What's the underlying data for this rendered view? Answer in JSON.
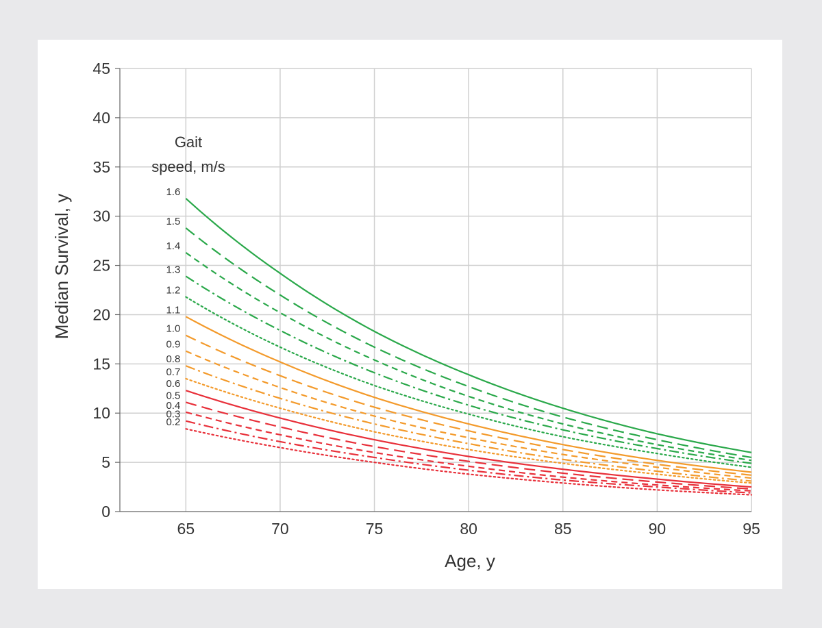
{
  "chart_data": {
    "type": "line",
    "title": "",
    "xlabel": "Age, y",
    "ylabel": "Median Survival, y",
    "xlim": [
      61.5,
      95
    ],
    "ylim": [
      0,
      45
    ],
    "xticks": [
      65,
      70,
      75,
      80,
      85,
      90,
      95
    ],
    "yticks": [
      0,
      5,
      10,
      15,
      20,
      25,
      30,
      35,
      40,
      45
    ],
    "grid": true,
    "legend_title": "Gait speed, m/s",
    "legend_title_lines": [
      "Gait",
      "speed, m/s"
    ],
    "legend_placement": "left, labels at curve starts",
    "colors": {
      "fast": "#2aa84a",
      "medium": "#f39a2b",
      "slow": "#e8303a",
      "grid": "#cfcfcf",
      "axis": "#666666"
    },
    "x": [
      65,
      70,
      75,
      80,
      85,
      90,
      95
    ],
    "series": [
      {
        "name": "1.6",
        "group": "fast",
        "dash": "solid",
        "values": [
          31.8,
          24.2,
          18.3,
          13.9,
          10.5,
          7.9,
          6.0
        ]
      },
      {
        "name": "1.5",
        "group": "fast",
        "dash": "longdash",
        "values": [
          28.8,
          22.0,
          16.7,
          12.7,
          9.6,
          7.3,
          5.5
        ]
      },
      {
        "name": "1.4",
        "group": "fast",
        "dash": "dash",
        "values": [
          26.3,
          20.2,
          15.4,
          11.7,
          8.9,
          6.8,
          5.2
        ]
      },
      {
        "name": "1.3",
        "group": "fast",
        "dash": "dashdot",
        "values": [
          23.9,
          18.4,
          14.1,
          10.8,
          8.3,
          6.4,
          4.9
        ]
      },
      {
        "name": "1.2",
        "group": "fast",
        "dash": "dot",
        "values": [
          21.8,
          16.7,
          12.8,
          9.9,
          7.6,
          5.9,
          4.5
        ]
      },
      {
        "name": "1.1",
        "group": "medium",
        "dash": "solid",
        "values": [
          19.8,
          15.2,
          11.6,
          8.9,
          6.8,
          5.2,
          4.0
        ]
      },
      {
        "name": "1.0",
        "group": "medium",
        "dash": "longdash",
        "values": [
          17.9,
          13.8,
          10.6,
          8.2,
          6.3,
          4.8,
          3.7
        ]
      },
      {
        "name": "0.9",
        "group": "medium",
        "dash": "dash",
        "values": [
          16.3,
          12.6,
          9.7,
          7.5,
          5.8,
          4.5,
          3.4
        ]
      },
      {
        "name": "0.8",
        "group": "medium",
        "dash": "dashdot",
        "values": [
          14.8,
          11.5,
          8.9,
          6.9,
          5.3,
          4.1,
          3.1
        ]
      },
      {
        "name": "0.7",
        "group": "medium",
        "dash": "dot",
        "values": [
          13.5,
          10.5,
          8.1,
          6.3,
          4.9,
          3.8,
          2.9
        ]
      },
      {
        "name": "0.6",
        "group": "slow",
        "dash": "solid",
        "values": [
          12.3,
          9.5,
          7.3,
          5.6,
          4.3,
          3.3,
          2.5
        ]
      },
      {
        "name": "0.5",
        "group": "slow",
        "dash": "longdash",
        "values": [
          11.1,
          8.6,
          6.6,
          5.1,
          3.9,
          3.0,
          2.3
        ]
      },
      {
        "name": "0.4",
        "group": "slow",
        "dash": "dash",
        "values": [
          10.1,
          7.8,
          6.0,
          4.6,
          3.5,
          2.7,
          2.1
        ]
      },
      {
        "name": "0.3",
        "group": "slow",
        "dash": "dashdot",
        "values": [
          9.2,
          7.1,
          5.5,
          4.2,
          3.2,
          2.5,
          1.9
        ]
      },
      {
        "name": "0.2",
        "group": "slow",
        "dash": "dot",
        "values": [
          8.4,
          6.5,
          5.0,
          3.8,
          2.9,
          2.2,
          1.7
        ]
      }
    ]
  }
}
